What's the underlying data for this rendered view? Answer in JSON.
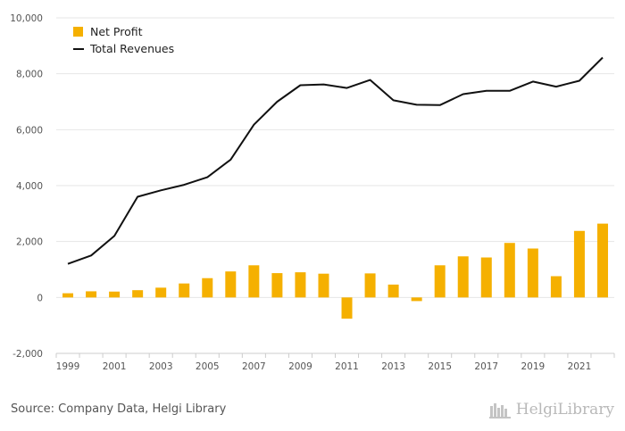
{
  "chart_data": {
    "type": "bar+line",
    "categories": [
      "1999",
      "2000",
      "2001",
      "2002",
      "2003",
      "2004",
      "2005",
      "2006",
      "2007",
      "2008",
      "2009",
      "2010",
      "2011",
      "2012",
      "2013",
      "2014",
      "2015",
      "2016",
      "2017",
      "2018",
      "2019",
      "2020",
      "2021",
      "2022"
    ],
    "series": [
      {
        "name": "Net Profit",
        "type": "bar",
        "color": "#f5b000",
        "values": [
          150,
          220,
          210,
          260,
          350,
          500,
          690,
          930,
          1150,
          870,
          900,
          850,
          -760,
          860,
          460,
          -130,
          1150,
          1470,
          1430,
          1950,
          1750,
          760,
          2380,
          2640
        ]
      },
      {
        "name": "Total Revenues",
        "type": "line",
        "color": "#111111",
        "values": [
          1200,
          1500,
          2200,
          3600,
          3830,
          4030,
          4300,
          4930,
          6180,
          7000,
          7590,
          7620,
          7490,
          7780,
          7050,
          6890,
          6880,
          7270,
          7390,
          7390,
          7720,
          7540,
          7750,
          8580
        ]
      }
    ],
    "y_ticks": [
      "10,000",
      "8,000",
      "6,000",
      "4,000",
      "2,000",
      "0",
      "-2,000"
    ],
    "y_tick_values": [
      10000,
      8000,
      6000,
      4000,
      2000,
      0,
      -2000
    ],
    "x_tick_labels": [
      "1999",
      "2001",
      "2003",
      "2005",
      "2007",
      "2009",
      "2011",
      "2013",
      "2015",
      "2017",
      "2019",
      "2021"
    ],
    "ylim": [
      -2000,
      10000
    ],
    "legend_position": "top-left",
    "grid": true
  },
  "footer": {
    "source": "Source: Company Data, Helgi Library",
    "logo_text": "HelgiLibrary"
  }
}
